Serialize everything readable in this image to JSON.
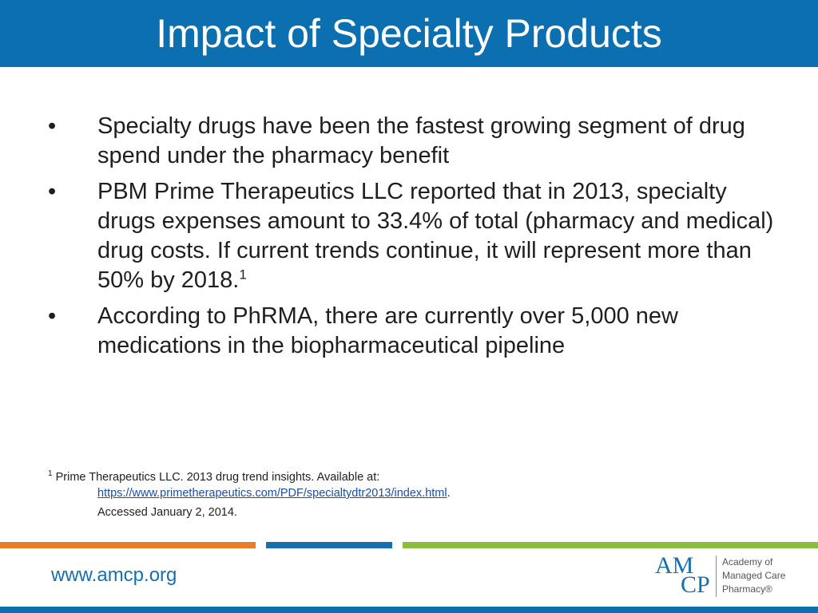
{
  "slide": {
    "title": "Impact of Specialty Products",
    "bullet_marker": "•",
    "bullets": [
      {
        "text": "Specialty drugs have been the fastest growing segment of drug spend under the pharmacy benefit",
        "sup": ""
      },
      {
        "text": "PBM Prime Therapeutics LLC reported that in 2013, specialty drugs expenses amount to 33.4% of total (pharmacy and medical) drug costs. If current trends continue, it will represent more than 50% by 2018.",
        "sup": "1"
      },
      {
        "text": "According to PhRMA, there are currently over 5,000 new medications in the biopharmaceutical pipeline",
        "sup": ""
      }
    ],
    "footnote": {
      "marker": "1",
      "line1": " Prime Therapeutics LLC. 2013 drug trend insights. Available at:",
      "url": "https://www.primetherapeutics.com/PDF/specialtydtr2013/index.html",
      "url_suffix": ".",
      "line3": "Accessed January 2, 2014."
    }
  },
  "footer": {
    "website": "www.amcp.org",
    "logo": {
      "mark_top": "AM",
      "mark_bottom": "CP",
      "text_lines": [
        "Academy of",
        "Managed Care",
        "Pharmacy®"
      ]
    }
  },
  "colors": {
    "header_blue": "#0b6fb0",
    "orange": "#e87e2a",
    "blue": "#1670b0",
    "green": "#8bbd3e"
  }
}
